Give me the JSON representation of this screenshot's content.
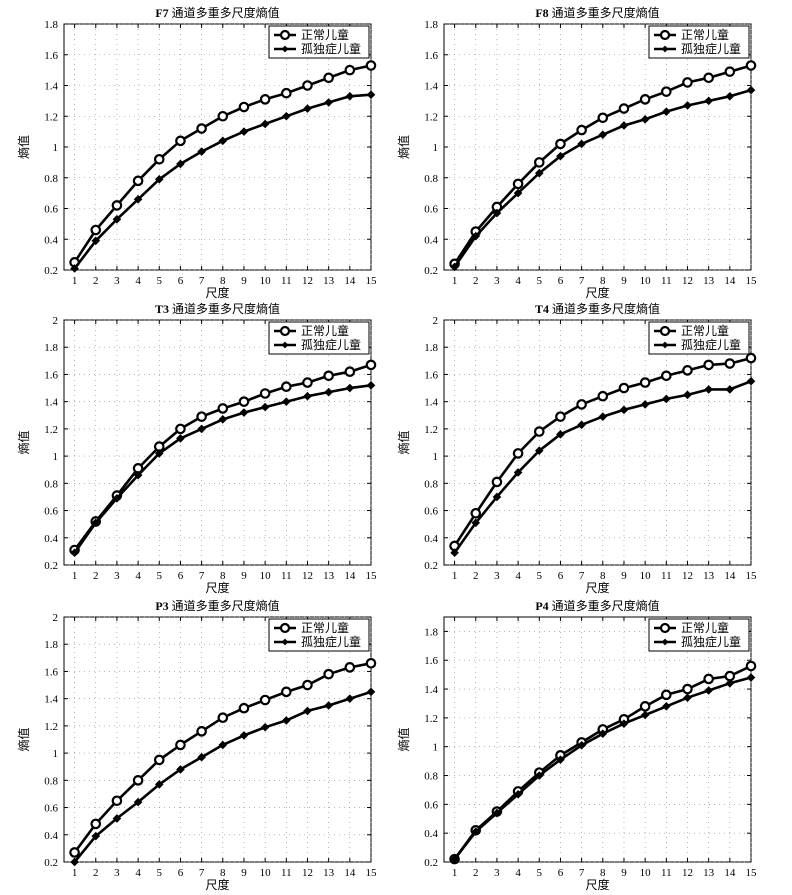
{
  "chart_data": [
    {
      "type": "line",
      "title_prefix": "F7",
      "title_suffix": " 通道多重多尺度熵值",
      "xlabel": "尺度",
      "ylabel": "熵值",
      "x": [
        1,
        2,
        3,
        4,
        5,
        6,
        7,
        8,
        9,
        10,
        11,
        12,
        13,
        14,
        15
      ],
      "xlim": [
        0.5,
        15
      ],
      "ylim": [
        0.2,
        1.8
      ],
      "yticks": [
        0.2,
        0.4,
        0.6,
        0.8,
        1,
        1.2,
        1.4,
        1.6,
        1.8
      ],
      "ytick_labels": [
        "0.2",
        "0.4",
        "0.6",
        "0.8",
        "1",
        "1.2",
        "1.4",
        "1.6",
        "1.8"
      ],
      "legend_position": "top-right",
      "series": [
        {
          "name": "正常儿童",
          "marker": "circle",
          "values": [
            0.25,
            0.46,
            0.62,
            0.78,
            0.92,
            1.04,
            1.12,
            1.2,
            1.26,
            1.31,
            1.35,
            1.4,
            1.45,
            1.5,
            1.53
          ]
        },
        {
          "name": "孤独症儿童",
          "marker": "diamond",
          "values": [
            0.21,
            0.39,
            0.53,
            0.66,
            0.79,
            0.89,
            0.97,
            1.04,
            1.1,
            1.15,
            1.2,
            1.25,
            1.29,
            1.33,
            1.34
          ]
        }
      ]
    },
    {
      "type": "line",
      "title_prefix": "F8",
      "title_suffix": " 通道多重多尺度熵值",
      "xlabel": "尺度",
      "ylabel": "熵值",
      "x": [
        1,
        2,
        3,
        4,
        5,
        6,
        7,
        8,
        9,
        10,
        11,
        12,
        13,
        14,
        15
      ],
      "xlim": [
        0.5,
        15
      ],
      "ylim": [
        0.2,
        1.8
      ],
      "yticks": [
        0.2,
        0.4,
        0.6,
        0.8,
        1,
        1.2,
        1.4,
        1.6,
        1.8
      ],
      "ytick_labels": [
        "0.2",
        "0.4",
        "0.6",
        "0.8",
        "1",
        "1.2",
        "1.4",
        "1.6",
        "1.8"
      ],
      "legend_position": "top-right",
      "series": [
        {
          "name": "正常儿童",
          "marker": "circle",
          "values": [
            0.24,
            0.45,
            0.61,
            0.76,
            0.9,
            1.02,
            1.11,
            1.19,
            1.25,
            1.31,
            1.36,
            1.42,
            1.45,
            1.49,
            1.53
          ]
        },
        {
          "name": "孤独症儿童",
          "marker": "diamond",
          "values": [
            0.22,
            0.42,
            0.57,
            0.7,
            0.83,
            0.94,
            1.02,
            1.08,
            1.14,
            1.18,
            1.23,
            1.27,
            1.3,
            1.33,
            1.37
          ]
        }
      ]
    },
    {
      "type": "line",
      "title_prefix": "T3",
      "title_suffix": " 通道多重多尺度熵值",
      "xlabel": "尺度",
      "ylabel": "熵值",
      "x": [
        1,
        2,
        3,
        4,
        5,
        6,
        7,
        8,
        9,
        10,
        11,
        12,
        13,
        14,
        15
      ],
      "xlim": [
        0.5,
        15
      ],
      "ylim": [
        0.2,
        2
      ],
      "yticks": [
        0.2,
        0.4,
        0.6,
        0.8,
        1,
        1.2,
        1.4,
        1.6,
        1.8,
        2
      ],
      "ytick_labels": [
        "0.2",
        "0.4",
        "0.6",
        "0.8",
        "1",
        "1.2",
        "1.4",
        "1.6",
        "1.8",
        "2"
      ],
      "legend_position": "top-right",
      "series": [
        {
          "name": "正常儿童",
          "marker": "circle",
          "values": [
            0.31,
            0.52,
            0.71,
            0.91,
            1.07,
            1.2,
            1.29,
            1.35,
            1.4,
            1.46,
            1.51,
            1.54,
            1.59,
            1.62,
            1.67
          ]
        },
        {
          "name": "孤独症儿童",
          "marker": "diamond",
          "values": [
            0.29,
            0.51,
            0.69,
            0.86,
            1.02,
            1.13,
            1.2,
            1.27,
            1.32,
            1.36,
            1.4,
            1.44,
            1.47,
            1.5,
            1.52
          ]
        }
      ]
    },
    {
      "type": "line",
      "title_prefix": "T4",
      "title_suffix": " 通道多重多尺度熵值",
      "xlabel": "尺度",
      "ylabel": "熵值",
      "x": [
        1,
        2,
        3,
        4,
        5,
        6,
        7,
        8,
        9,
        10,
        11,
        12,
        13,
        14,
        15
      ],
      "xlim": [
        0.5,
        15
      ],
      "ylim": [
        0.2,
        2
      ],
      "yticks": [
        0.2,
        0.4,
        0.6,
        0.8,
        1,
        1.2,
        1.4,
        1.6,
        1.8,
        2
      ],
      "ytick_labels": [
        "0.2",
        "0.4",
        "0.6",
        "0.8",
        "1",
        "1.2",
        "1.4",
        "1.6",
        "1.8",
        "2"
      ],
      "legend_position": "top-right",
      "series": [
        {
          "name": "正常儿童",
          "marker": "circle",
          "values": [
            0.34,
            0.58,
            0.81,
            1.02,
            1.18,
            1.29,
            1.38,
            1.44,
            1.5,
            1.54,
            1.59,
            1.63,
            1.67,
            1.68,
            1.72
          ]
        },
        {
          "name": "孤独症儿童",
          "marker": "diamond",
          "values": [
            0.29,
            0.51,
            0.7,
            0.88,
            1.04,
            1.16,
            1.23,
            1.29,
            1.34,
            1.38,
            1.42,
            1.45,
            1.49,
            1.49,
            1.55
          ]
        }
      ]
    },
    {
      "type": "line",
      "title_prefix": "P3",
      "title_suffix": " 通道多重多尺度熵值",
      "xlabel": "尺度",
      "ylabel": "熵值",
      "x": [
        1,
        2,
        3,
        4,
        5,
        6,
        7,
        8,
        9,
        10,
        11,
        12,
        13,
        14,
        15
      ],
      "xlim": [
        0.5,
        15
      ],
      "ylim": [
        0.2,
        2
      ],
      "yticks": [
        0.2,
        0.4,
        0.6,
        0.8,
        1,
        1.2,
        1.4,
        1.6,
        1.8,
        2
      ],
      "ytick_labels": [
        "0.2",
        "0.4",
        "0.6",
        "0.8",
        "1",
        "1.2",
        "1.4",
        "1.6",
        "1.8",
        "2"
      ],
      "legend_position": "top-right",
      "series": [
        {
          "name": "正常儿童",
          "marker": "circle",
          "values": [
            0.27,
            0.48,
            0.65,
            0.8,
            0.95,
            1.06,
            1.16,
            1.26,
            1.33,
            1.39,
            1.45,
            1.5,
            1.58,
            1.63,
            1.66
          ]
        },
        {
          "name": "孤独症儿童",
          "marker": "diamond",
          "values": [
            0.2,
            0.39,
            0.52,
            0.64,
            0.77,
            0.88,
            0.97,
            1.06,
            1.13,
            1.19,
            1.24,
            1.31,
            1.35,
            1.4,
            1.45
          ]
        }
      ]
    },
    {
      "type": "line",
      "title_prefix": "P4",
      "title_suffix": " 通道多重多尺度熵值",
      "xlabel": "尺度",
      "ylabel": "熵值",
      "x": [
        1,
        2,
        3,
        4,
        5,
        6,
        7,
        8,
        9,
        10,
        11,
        12,
        13,
        14,
        15
      ],
      "xlim": [
        0.5,
        15
      ],
      "ylim": [
        0.2,
        1.9
      ],
      "yticks": [
        0.2,
        0.4,
        0.6,
        0.8,
        1,
        1.2,
        1.4,
        1.6,
        1.8
      ],
      "ytick_labels": [
        "0.2",
        "0.4",
        "0.6",
        "0.8",
        "1",
        "1.2",
        "1.4",
        "1.6",
        "1.8"
      ],
      "legend_position": "top-right",
      "series": [
        {
          "name": "正常儿童",
          "marker": "circle",
          "values": [
            0.22,
            0.42,
            0.55,
            0.69,
            0.82,
            0.94,
            1.03,
            1.12,
            1.19,
            1.28,
            1.36,
            1.4,
            1.47,
            1.49,
            1.56
          ]
        },
        {
          "name": "孤独症儿童",
          "marker": "diamond",
          "values": [
            0.22,
            0.41,
            0.54,
            0.67,
            0.8,
            0.91,
            1.01,
            1.09,
            1.16,
            1.22,
            1.28,
            1.34,
            1.39,
            1.44,
            1.48
          ]
        }
      ]
    }
  ]
}
